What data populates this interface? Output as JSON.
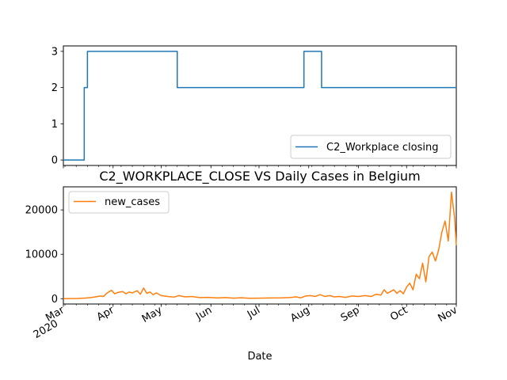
{
  "figure": {
    "title": "C2_WORKPLACE_CLOSE VS Daily Cases in Belgium",
    "xlabel": "Date",
    "x_tick_labels": [
      {
        "date": "2020-03-01",
        "label": "Mar",
        "sublabel": "2020"
      },
      {
        "date": "2020-04-01",
        "label": "Apr",
        "sublabel": ""
      },
      {
        "date": "2020-05-01",
        "label": "May",
        "sublabel": ""
      },
      {
        "date": "2020-06-01",
        "label": "Jun",
        "sublabel": ""
      },
      {
        "date": "2020-07-01",
        "label": "Jul",
        "sublabel": ""
      },
      {
        "date": "2020-08-01",
        "label": "Aug",
        "sublabel": ""
      },
      {
        "date": "2020-09-01",
        "label": "Sep",
        "sublabel": ""
      },
      {
        "date": "2020-10-01",
        "label": "Oct",
        "sublabel": ""
      },
      {
        "date": "2020-11-01",
        "label": "Nov",
        "sublabel": ""
      }
    ]
  },
  "chart_data": [
    {
      "type": "line",
      "title": "",
      "xlabel": "",
      "ylabel": "",
      "xlim": [
        "2020-03-01",
        "2020-11-01"
      ],
      "ylim": [
        -0.15,
        3.15
      ],
      "yticks": [
        0,
        1,
        2,
        3
      ],
      "grid": false,
      "legend_position": "lower-right",
      "series": [
        {
          "name": "C2_Workplace closing",
          "color": "#1f77b4",
          "step": "post",
          "points": [
            [
              "2020-03-01",
              0
            ],
            [
              "2020-03-14",
              2
            ],
            [
              "2020-03-16",
              3
            ],
            [
              "2020-05-11",
              2
            ],
            [
              "2020-07-29",
              3
            ],
            [
              "2020-08-09",
              2
            ],
            [
              "2020-11-01",
              2
            ]
          ]
        }
      ]
    },
    {
      "type": "line",
      "title": "C2_WORKPLACE_CLOSE VS Daily Cases in Belgium",
      "xlabel": "Date",
      "ylabel": "",
      "xlim": [
        "2020-03-01",
        "2020-11-01"
      ],
      "ylim": [
        -1200,
        25200
      ],
      "yticks": [
        0,
        10000,
        20000
      ],
      "grid": false,
      "legend_position": "upper-left",
      "series": [
        {
          "name": "new_cases",
          "color": "#ff7f0e",
          "points": [
            [
              "2020-03-01",
              0
            ],
            [
              "2020-03-05",
              20
            ],
            [
              "2020-03-10",
              40
            ],
            [
              "2020-03-12",
              100
            ],
            [
              "2020-03-15",
              130
            ],
            [
              "2020-03-18",
              250
            ],
            [
              "2020-03-21",
              400
            ],
            [
              "2020-03-24",
              600
            ],
            [
              "2020-03-26",
              500
            ],
            [
              "2020-03-28",
              1200
            ],
            [
              "2020-03-31",
              1900
            ],
            [
              "2020-04-02",
              1100
            ],
            [
              "2020-04-04",
              1400
            ],
            [
              "2020-04-07",
              1600
            ],
            [
              "2020-04-09",
              1100
            ],
            [
              "2020-04-11",
              1500
            ],
            [
              "2020-04-13",
              1300
            ],
            [
              "2020-04-16",
              1800
            ],
            [
              "2020-04-18",
              1000
            ],
            [
              "2020-04-20",
              2400
            ],
            [
              "2020-04-22",
              1200
            ],
            [
              "2020-04-24",
              1500
            ],
            [
              "2020-04-26",
              900
            ],
            [
              "2020-04-28",
              1300
            ],
            [
              "2020-05-01",
              700
            ],
            [
              "2020-05-05",
              500
            ],
            [
              "2020-05-09",
              350
            ],
            [
              "2020-05-12",
              700
            ],
            [
              "2020-05-16",
              400
            ],
            [
              "2020-05-20",
              500
            ],
            [
              "2020-05-25",
              250
            ],
            [
              "2020-05-30",
              300
            ],
            [
              "2020-06-05",
              150
            ],
            [
              "2020-06-10",
              250
            ],
            [
              "2020-06-15",
              120
            ],
            [
              "2020-06-20",
              200
            ],
            [
              "2020-06-25",
              90
            ],
            [
              "2020-07-01",
              120
            ],
            [
              "2020-07-08",
              150
            ],
            [
              "2020-07-15",
              180
            ],
            [
              "2020-07-20",
              250
            ],
            [
              "2020-07-24",
              400
            ],
            [
              "2020-07-27",
              200
            ],
            [
              "2020-07-30",
              600
            ],
            [
              "2020-08-02",
              700
            ],
            [
              "2020-08-05",
              500
            ],
            [
              "2020-08-08",
              900
            ],
            [
              "2020-08-11",
              500
            ],
            [
              "2020-08-14",
              700
            ],
            [
              "2020-08-17",
              400
            ],
            [
              "2020-08-20",
              500
            ],
            [
              "2020-08-24",
              300
            ],
            [
              "2020-08-28",
              600
            ],
            [
              "2020-09-01",
              500
            ],
            [
              "2020-09-05",
              700
            ],
            [
              "2020-09-09",
              500
            ],
            [
              "2020-09-12",
              1000
            ],
            [
              "2020-09-15",
              800
            ],
            [
              "2020-09-17",
              2000
            ],
            [
              "2020-09-19",
              1200
            ],
            [
              "2020-09-21",
              1600
            ],
            [
              "2020-09-23",
              2000
            ],
            [
              "2020-09-25",
              1200
            ],
            [
              "2020-09-27",
              1800
            ],
            [
              "2020-09-29",
              1100
            ],
            [
              "2020-10-01",
              2600
            ],
            [
              "2020-10-03",
              3500
            ],
            [
              "2020-10-05",
              2000
            ],
            [
              "2020-10-07",
              5500
            ],
            [
              "2020-10-09",
              4500
            ],
            [
              "2020-10-11",
              8000
            ],
            [
              "2020-10-13",
              3800
            ],
            [
              "2020-10-15",
              9500
            ],
            [
              "2020-10-17",
              10500
            ],
            [
              "2020-10-19",
              8500
            ],
            [
              "2020-10-21",
              11000
            ],
            [
              "2020-10-23",
              15000
            ],
            [
              "2020-10-25",
              17500
            ],
            [
              "2020-10-27",
              13000
            ],
            [
              "2020-10-29",
              24000
            ],
            [
              "2020-10-31",
              18000
            ],
            [
              "2020-11-01",
              12000
            ]
          ]
        }
      ]
    }
  ]
}
